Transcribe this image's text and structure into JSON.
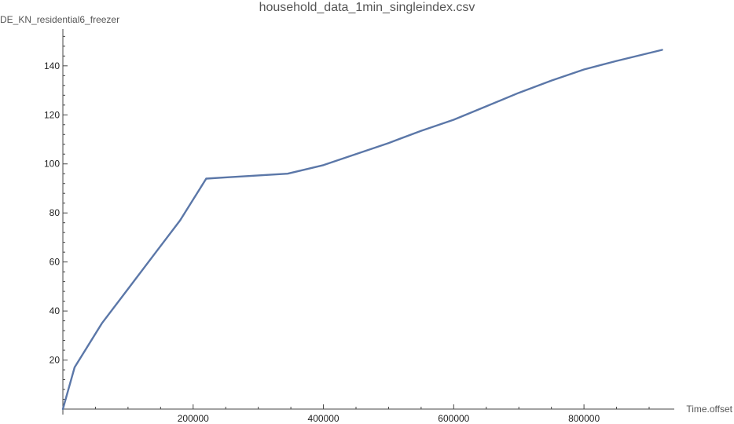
{
  "chart_data": {
    "type": "line",
    "title": "household_data_1min_singleindex.csv",
    "xlabel": "Time.offset",
    "ylabel": "DE_KN_residential6_freezer",
    "xlim": [
      0,
      935000
    ],
    "ylim": [
      0,
      155
    ],
    "xticks": [
      200000,
      400000,
      600000,
      800000
    ],
    "xtick_labels": [
      "200000",
      "400000",
      "600000",
      "800000"
    ],
    "yticks": [
      20,
      40,
      60,
      80,
      100,
      120,
      140
    ],
    "ytick_labels": [
      "20",
      "40",
      "60",
      "80",
      "100",
      "120",
      "140"
    ],
    "grid": false,
    "legend": "none",
    "color": "#5b77a8",
    "series": [
      {
        "x": [
          0,
          18000,
          60000,
          100000,
          140000,
          180000,
          220000,
          250000,
          300000,
          345000,
          400000,
          450000,
          500000,
          550000,
          600000,
          650000,
          700000,
          750000,
          800000,
          850000,
          920000
        ],
        "y": [
          0,
          17,
          35,
          49,
          63,
          77,
          94,
          94.5,
          95.3,
          96,
          99.5,
          104,
          108.5,
          113.5,
          118,
          123.5,
          129,
          134,
          138.5,
          142,
          146.5
        ]
      }
    ]
  }
}
